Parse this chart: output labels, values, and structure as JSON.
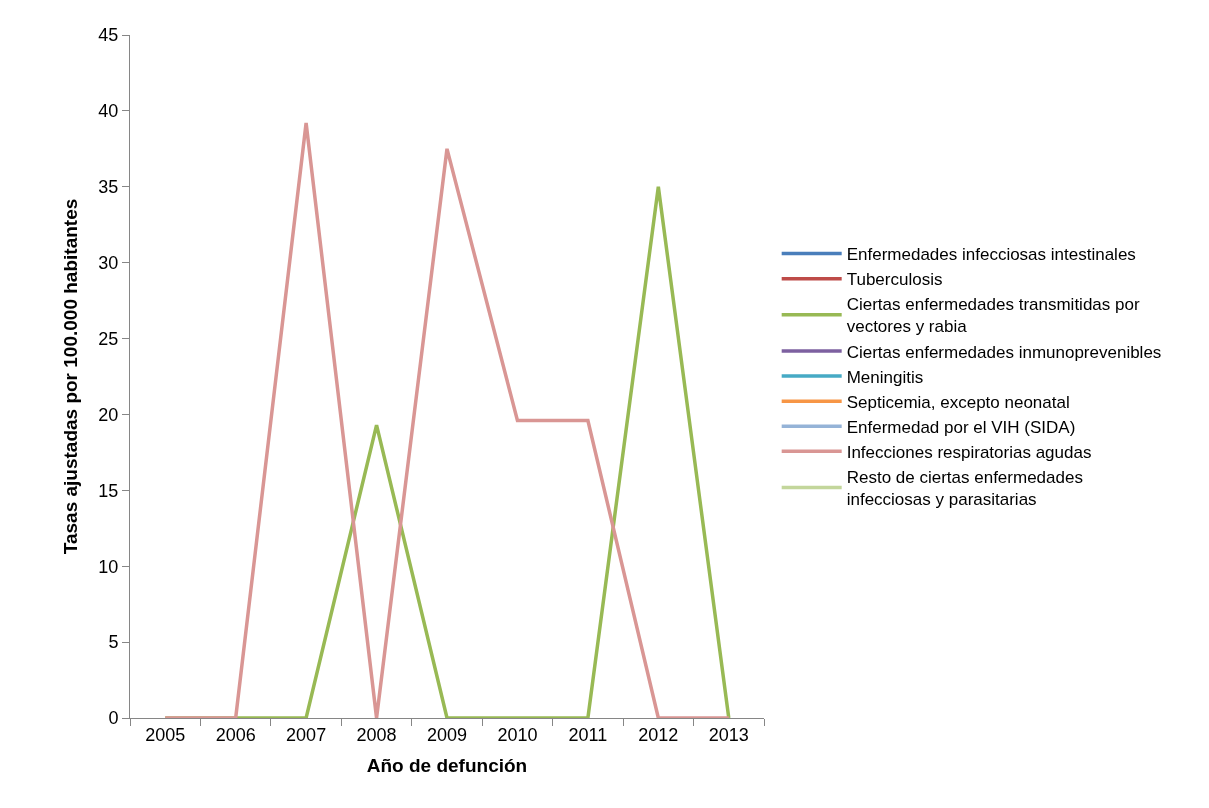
{
  "chart_data": {
    "type": "line",
    "xlabel": "Año de defunción",
    "ylabel": "Tasas ajustadas por 100.000 habitantes",
    "categories": [
      "2005",
      "2006",
      "2007",
      "2008",
      "2009",
      "2010",
      "2011",
      "2012",
      "2013"
    ],
    "ylim": [
      0,
      45
    ],
    "yticks": [
      0,
      5,
      10,
      15,
      20,
      25,
      30,
      35,
      40,
      45
    ],
    "legend": "right",
    "marker": "none",
    "line_style": "solid",
    "series": [
      {
        "name": "Enfermedades infecciosas intestinales",
        "color": "#4a7ebb",
        "values": [
          null,
          null,
          null,
          null,
          null,
          null,
          null,
          null,
          null
        ]
      },
      {
        "name": "Tuberculosis",
        "color": "#be4b48",
        "values": [
          null,
          null,
          null,
          null,
          null,
          null,
          null,
          null,
          null
        ]
      },
      {
        "name": "Ciertas enfermedades transmitidas por vectores y rabia",
        "color": "#98b954",
        "values": [
          0,
          0,
          0,
          19.3,
          0,
          0,
          0,
          35,
          0
        ]
      },
      {
        "name": "Ciertas enfermedades inmunoprevenibles",
        "color": "#7d60a0",
        "values": [
          null,
          null,
          null,
          null,
          null,
          null,
          null,
          null,
          null
        ]
      },
      {
        "name": "Meningitis",
        "color": "#46aac5",
        "values": [
          null,
          null,
          null,
          null,
          null,
          null,
          null,
          null,
          null
        ]
      },
      {
        "name": "Septicemia, excepto neonatal",
        "color": "#f79646",
        "values": [
          null,
          null,
          null,
          null,
          null,
          null,
          null,
          null,
          null
        ]
      },
      {
        "name": "Enfermedad por el VIH (SIDA)",
        "color": "#95b3d7",
        "values": [
          null,
          null,
          null,
          null,
          null,
          null,
          null,
          null,
          null
        ]
      },
      {
        "name": "Infecciones respiratorias agudas",
        "color": "#d99694",
        "values": [
          0,
          0,
          39.2,
          0,
          37.5,
          19.6,
          19.6,
          0,
          0
        ]
      },
      {
        "name": "Resto de ciertas enfermedades infecciosas y parasitarias",
        "color": "#c3d69b",
        "values": [
          null,
          null,
          null,
          null,
          null,
          null,
          null,
          null,
          null
        ]
      }
    ]
  }
}
